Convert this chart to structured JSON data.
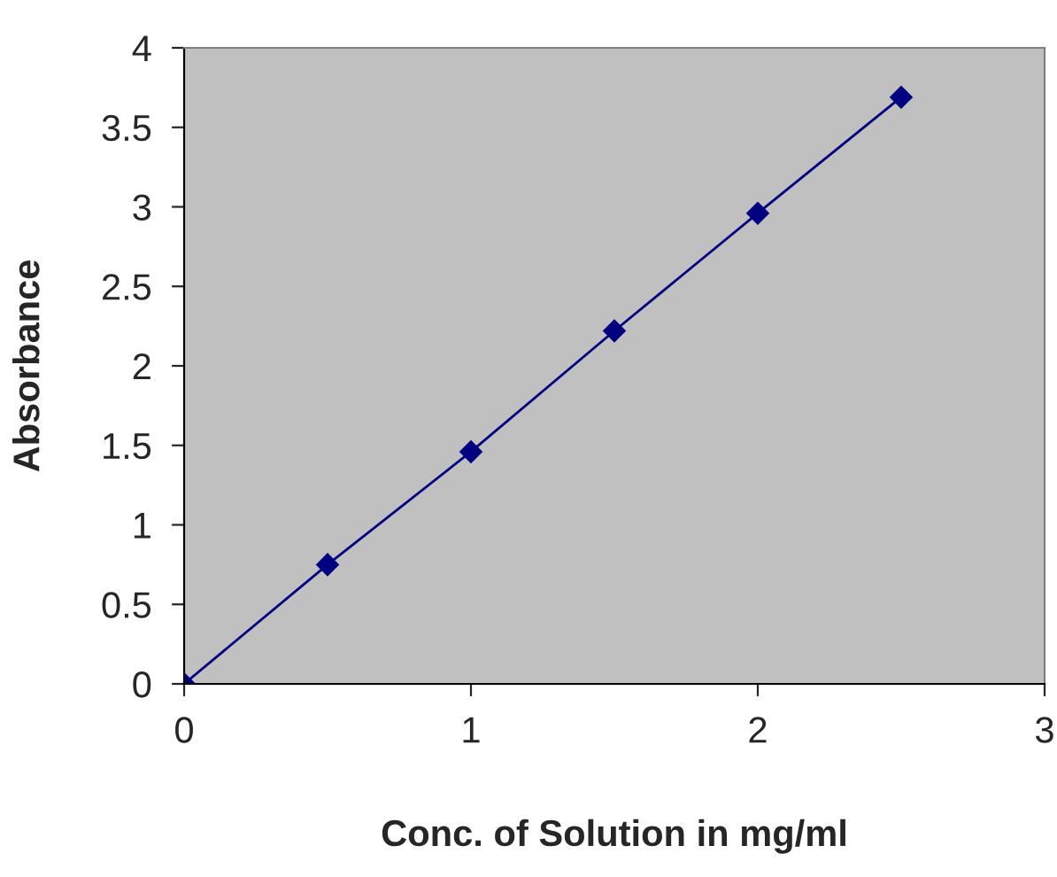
{
  "chart_data": {
    "type": "line",
    "xlabel": "Conc. of Solution in mg/ml",
    "ylabel": "Absorbance",
    "x": [
      0,
      0.5,
      1,
      1.5,
      2,
      2.5
    ],
    "series": [
      {
        "color": "#000080",
        "values": [
          0,
          0.75,
          1.46,
          2.22,
          2.96,
          3.69
        ]
      }
    ],
    "xlim": [
      0,
      3
    ],
    "xticks": [
      0,
      1,
      2,
      3
    ],
    "ylim": [
      0,
      4
    ],
    "yticks": [
      0,
      0.5,
      1,
      1.5,
      2,
      2.5,
      3,
      3.5,
      4
    ],
    "marker": "diamond",
    "line_style": "solid",
    "grid": false,
    "legend": false
  }
}
